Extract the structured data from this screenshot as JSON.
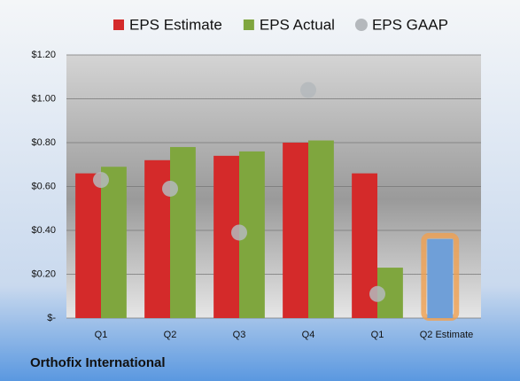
{
  "chart_data": {
    "type": "bar",
    "title": "Orthofix International",
    "categories": [
      "Q1",
      "Q2",
      "Q3",
      "Q4",
      "Q1",
      "Q2 Estimate"
    ],
    "series": [
      {
        "name": "EPS Estimate",
        "color": "#d42a2a",
        "colors": [
          "#d42a2a",
          "#d42a2a",
          "#d42a2a",
          "#d42a2a",
          "#d42a2a",
          "#6f9fd8"
        ],
        "values": [
          0.66,
          0.72,
          0.74,
          0.8,
          0.66,
          0.36
        ],
        "highlight": [
          false,
          false,
          false,
          false,
          false,
          true
        ]
      },
      {
        "name": "EPS Actual",
        "color": "#7fa63e",
        "values": [
          0.69,
          0.78,
          0.76,
          0.81,
          0.23,
          null
        ]
      },
      {
        "name": "EPS GAAP",
        "color": "#b4b8bc",
        "marker": "circle",
        "values": [
          0.63,
          0.59,
          0.39,
          1.04,
          0.11,
          null
        ]
      }
    ],
    "ylim": [
      0,
      1.2
    ],
    "yticks": [
      {
        "value": 0,
        "label": "$-"
      },
      {
        "value": 0.2,
        "label": "$0.20"
      },
      {
        "value": 0.4,
        "label": "$0.40"
      },
      {
        "value": 0.6,
        "label": "$0.60"
      },
      {
        "value": 0.8,
        "label": "$0.80"
      },
      {
        "value": 1.0,
        "label": "$1.00"
      },
      {
        "value": 1.2,
        "label": "$1.20"
      }
    ],
    "grid": true,
    "legend": "top"
  }
}
